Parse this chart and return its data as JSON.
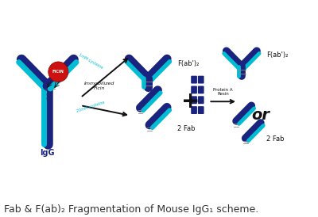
{
  "title": "Fab & F(ab)₂ Fragmentation of Mouse IgG₁ scheme.",
  "dark_blue": "#1a237e",
  "cyan": "#00bcd4",
  "red": "#cc1111",
  "white": "#ffffff",
  "black": "#111111",
  "bg_color": "#ffffff",
  "text_color": "#333333",
  "label_ficin": "FICIN",
  "label_IgG": "IgG",
  "label_fab": "2 Fab",
  "label_fab2": "F(ab')₂",
  "label_immobilized": "Immobilized\nFicin",
  "label_1mM": "1mM cysteine",
  "label_20mM": "20mM cysteine",
  "label_protein_a": "Protein A\nResin",
  "label_or": "or",
  "label_fab_r": "2 Fab",
  "label_fab2_r": "F(ab')₂",
  "title_fontsize": 9
}
